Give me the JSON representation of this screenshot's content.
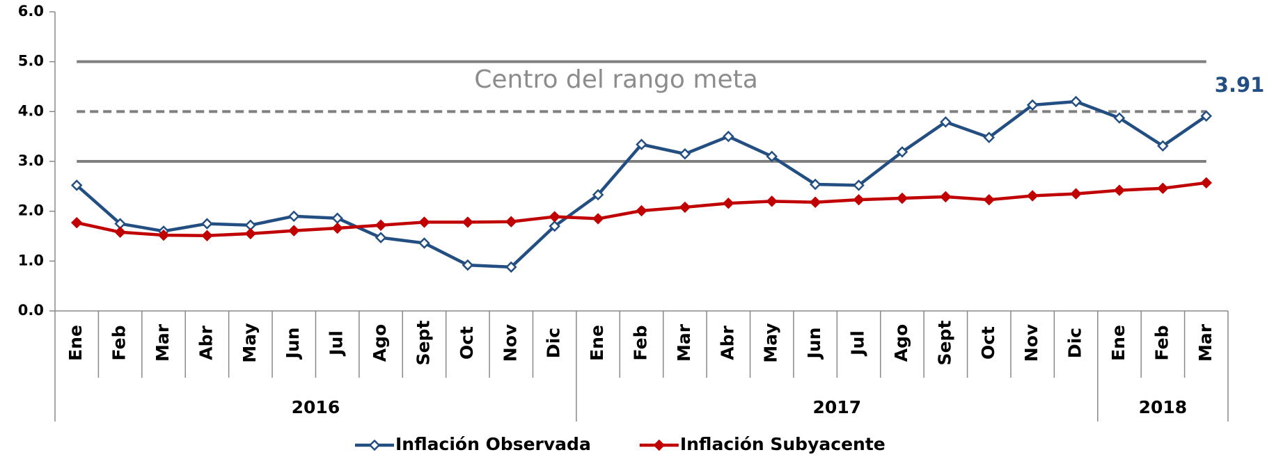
{
  "chart_data": {
    "type": "line",
    "categories": [
      "Ene",
      "Feb",
      "Mar",
      "Abr",
      "May",
      "Jun",
      "Jul",
      "Ago",
      "Sept",
      "Oct",
      "Nov",
      "Dic",
      "Ene",
      "Feb",
      "Mar",
      "Abr",
      "May",
      "Jun",
      "Jul",
      "Ago",
      "Sept",
      "Oct",
      "Nov",
      "Dic",
      "Ene",
      "Feb",
      "Mar"
    ],
    "x_groups": [
      {
        "label": "2016",
        "start": 0,
        "end": 11
      },
      {
        "label": "2017",
        "start": 12,
        "end": 23
      },
      {
        "label": "2018",
        "start": 24,
        "end": 26
      }
    ],
    "series": [
      {
        "name": "Inflación Observada",
        "color": "#234e82",
        "marker": "hollow-diamond",
        "values": [
          2.52,
          1.75,
          1.6,
          1.75,
          1.72,
          1.9,
          1.86,
          1.47,
          1.36,
          0.92,
          0.88,
          1.7,
          2.33,
          3.34,
          3.15,
          3.5,
          3.1,
          2.54,
          2.52,
          3.19,
          3.79,
          3.48,
          4.13,
          4.2,
          3.87,
          3.31,
          3.91
        ]
      },
      {
        "name": "Inflación Subyacente",
        "color": "#c00000",
        "marker": "filled-diamond",
        "values": [
          1.77,
          1.58,
          1.52,
          1.51,
          1.55,
          1.61,
          1.66,
          1.72,
          1.78,
          1.78,
          1.79,
          1.89,
          1.85,
          2.01,
          2.08,
          2.16,
          2.2,
          2.18,
          2.23,
          2.26,
          2.29,
          2.23,
          2.31,
          2.35,
          2.42,
          2.46,
          2.57
        ]
      }
    ],
    "ylim": [
      0,
      6
    ],
    "yticks": [
      {
        "value": 0,
        "label": "0.0"
      },
      {
        "value": 1,
        "label": "1.0"
      },
      {
        "value": 2,
        "label": "2.0"
      },
      {
        "value": 3,
        "label": "3.0"
      },
      {
        "value": 4,
        "label": "4.0"
      },
      {
        "value": 5,
        "label": "5.0"
      },
      {
        "value": 6,
        "label": "6.0"
      }
    ],
    "reference_lines": [
      {
        "value": 3,
        "style": "solid"
      },
      {
        "value": 4,
        "style": "dashed"
      },
      {
        "value": 5,
        "style": "solid"
      }
    ],
    "annotation": "Centro del rango meta",
    "legend": "bottom"
  }
}
